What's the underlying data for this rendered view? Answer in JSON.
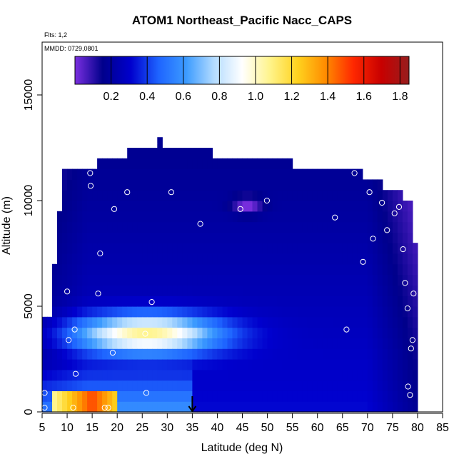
{
  "chart_data": {
    "type": "heatmap",
    "title": "ATOM1 Northeast_Pacific Nacc_CAPS",
    "subtitle_flights": "Flts: 1,2",
    "subtitle_dates": "MMDD: 0729,0801",
    "xlabel": "Latitude (deg N)",
    "ylabel": "Altitude (m)",
    "xlim": [
      5,
      85
    ],
    "ylim": [
      0,
      17500
    ],
    "xticks": [
      "5",
      "10",
      "15",
      "20",
      "25",
      "30",
      "35",
      "40",
      "45",
      "50",
      "55",
      "60",
      "65",
      "70",
      "75",
      "80",
      "85"
    ],
    "yticks": [
      "0",
      "5000",
      "10000",
      "15000"
    ],
    "colorbar": {
      "range": [
        0,
        1.85
      ],
      "tick_labels": [
        "0.2",
        "0.4",
        "0.6",
        "0.8",
        "1.0",
        "1.2",
        "1.4",
        "1.6",
        "1.8"
      ],
      "colors": [
        "#7b2fe0",
        "#00008b",
        "#0000cd",
        "#1e64ff",
        "#3c9bff",
        "#b4dcff",
        "#ffffff",
        "#fff48c",
        "#ffd21e",
        "#ff8c00",
        "#ff2800",
        "#c80000",
        "#961e1e"
      ]
    },
    "marker": {
      "latitude": 35,
      "symbol": "arrow"
    },
    "grid": false,
    "legend": "colorbar-top-inside",
    "profile_extent": [
      {
        "lat": 5,
        "alt_top": 4500
      },
      {
        "lat": 6,
        "alt_top": 7000
      },
      {
        "lat": 7,
        "alt_top": 9500
      },
      {
        "lat": 8,
        "alt_top": 11500
      },
      {
        "lat": 14,
        "alt_top": 11500
      },
      {
        "lat": 15,
        "alt_top": 12000
      },
      {
        "lat": 21,
        "alt_top": 12500
      },
      {
        "lat": 27,
        "alt_top": 13000
      },
      {
        "lat": 28,
        "alt_top": 12500
      },
      {
        "lat": 32,
        "alt_top": 12500
      },
      {
        "lat": 38,
        "alt_top": 12000
      },
      {
        "lat": 54,
        "alt_top": 11500
      },
      {
        "lat": 68,
        "alt_top": 11000
      },
      {
        "lat": 72,
        "alt_top": 10500
      },
      {
        "lat": 76,
        "alt_top": 10000
      },
      {
        "lat": 78,
        "alt_top": 8000
      },
      {
        "lat": 79,
        "alt_top": 6000
      },
      {
        "lat": 80,
        "alt_top": 3000
      }
    ],
    "features": [
      {
        "name": "boundary-layer-high",
        "lat_range": [
          7,
          20
        ],
        "alt_range": [
          0,
          900
        ],
        "value": 1.5
      },
      {
        "name": "mid-level-plume",
        "lat_center": 26,
        "alt_center": 3700,
        "lat_spread": 14,
        "alt_spread": 900,
        "value": 1.05
      },
      {
        "name": "upper-min",
        "lat_center": 46,
        "alt_center": 9800,
        "lat_spread": 3,
        "alt_spread": 400,
        "value": 0.05
      }
    ],
    "sample_points": [
      {
        "lat": 5.5,
        "alt": 200
      },
      {
        "lat": 5.5,
        "alt": 900
      },
      {
        "lat": 5.3,
        "alt": 4800
      },
      {
        "lat": 8.2,
        "alt": 11300
      },
      {
        "lat": 10.0,
        "alt": 5700
      },
      {
        "lat": 10.3,
        "alt": 3400
      },
      {
        "lat": 11.5,
        "alt": 3900
      },
      {
        "lat": 11.2,
        "alt": 200
      },
      {
        "lat": 11.7,
        "alt": 1800
      },
      {
        "lat": 14.6,
        "alt": 11300
      },
      {
        "lat": 14.7,
        "alt": 10700
      },
      {
        "lat": 16.2,
        "alt": 5600
      },
      {
        "lat": 16.6,
        "alt": 7500
      },
      {
        "lat": 17.5,
        "alt": 200
      },
      {
        "lat": 18.2,
        "alt": 200
      },
      {
        "lat": 19.1,
        "alt": 2800
      },
      {
        "lat": 19.4,
        "alt": 9600
      },
      {
        "lat": 22.0,
        "alt": 10400
      },
      {
        "lat": 25.6,
        "alt": 3700
      },
      {
        "lat": 25.8,
        "alt": 900
      },
      {
        "lat": 26.9,
        "alt": 5200
      },
      {
        "lat": 27.4,
        "alt": 12700
      },
      {
        "lat": 30.8,
        "alt": 10400
      },
      {
        "lat": 36.6,
        "alt": 8900
      },
      {
        "lat": 44.6,
        "alt": 9600
      },
      {
        "lat": 49.9,
        "alt": 10000
      },
      {
        "lat": 63.5,
        "alt": 9200
      },
      {
        "lat": 65.8,
        "alt": 3900
      },
      {
        "lat": 67.4,
        "alt": 11300
      },
      {
        "lat": 69.1,
        "alt": 7100
      },
      {
        "lat": 70.4,
        "alt": 10400
      },
      {
        "lat": 71.1,
        "alt": 8200
      },
      {
        "lat": 72.9,
        "alt": 9900
      },
      {
        "lat": 73.9,
        "alt": 8600
      },
      {
        "lat": 75.4,
        "alt": 9400
      },
      {
        "lat": 76.3,
        "alt": 9700
      },
      {
        "lat": 77.1,
        "alt": 7700
      },
      {
        "lat": 77.5,
        "alt": 6100
      },
      {
        "lat": 78.0,
        "alt": 4900
      },
      {
        "lat": 78.1,
        "alt": 1200
      },
      {
        "lat": 78.7,
        "alt": 3000
      },
      {
        "lat": 79.0,
        "alt": 3400
      },
      {
        "lat": 79.2,
        "alt": 5600
      },
      {
        "lat": 78.5,
        "alt": 800
      }
    ]
  }
}
